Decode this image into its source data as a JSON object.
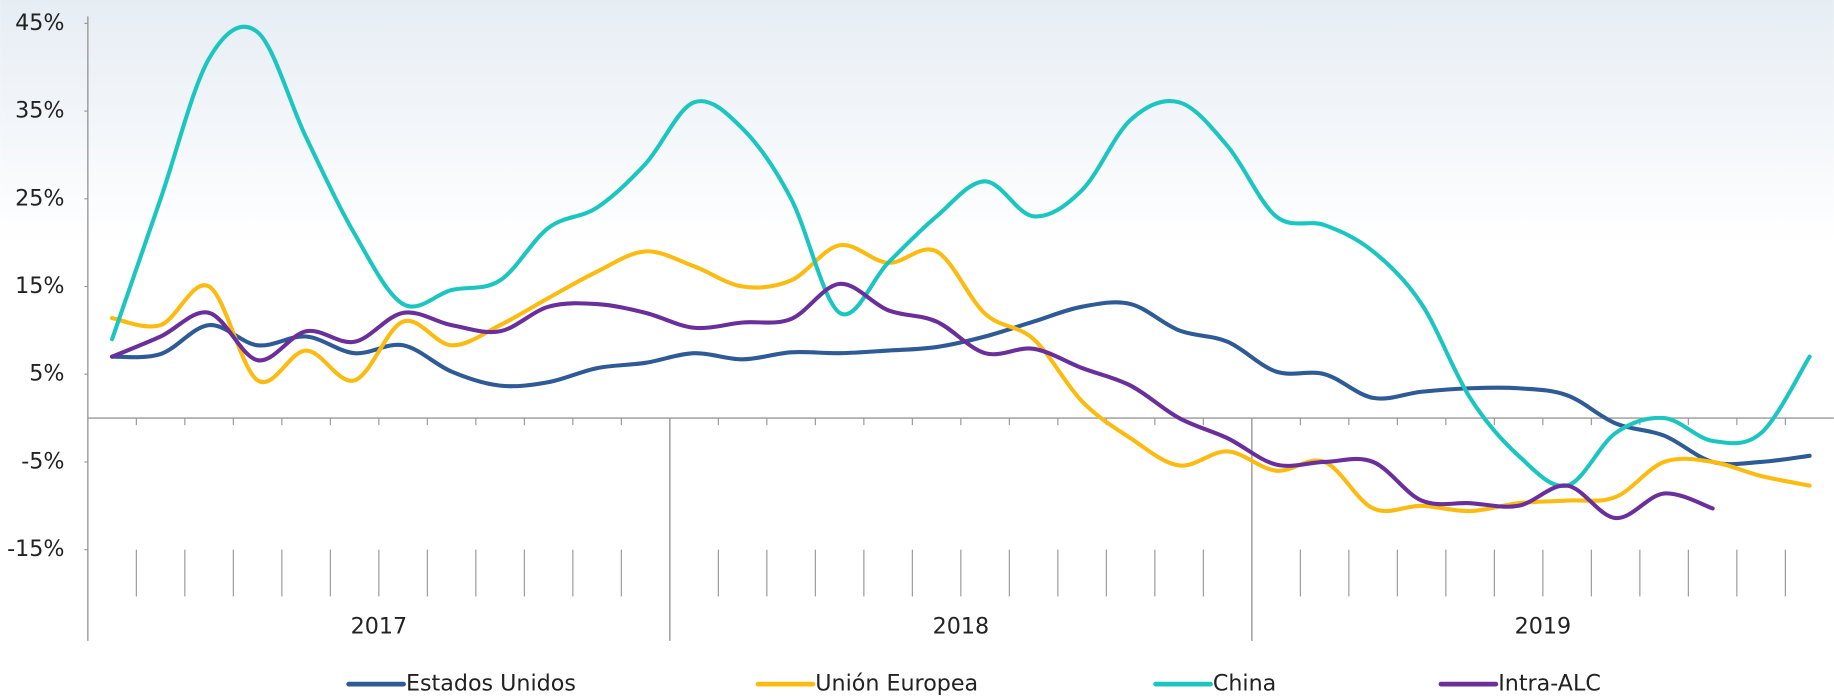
{
  "chart_data": {
    "type": "line",
    "categories": [
      null,
      null,
      null,
      null,
      null,
      null,
      null,
      null,
      null,
      null,
      null,
      null,
      null,
      null,
      null,
      null,
      null,
      null,
      null,
      null,
      null,
      null,
      null,
      null,
      null,
      null,
      null,
      null,
      null,
      null,
      null,
      null,
      null,
      null,
      null,
      null
    ],
    "year_labels": [
      "2017",
      "2018",
      "2019"
    ],
    "ylim": [
      -15,
      45
    ],
    "yticks": [
      {
        "value": 45,
        "label": "45%"
      },
      {
        "value": 35,
        "label": "35%"
      },
      {
        "value": 25,
        "label": "25%"
      },
      {
        "value": 15,
        "label": "15%"
      },
      {
        "value": 5,
        "label": "5%"
      },
      {
        "value": -5,
        "label": "-5%"
      },
      {
        "value": -15,
        "label": "-15%"
      }
    ],
    "legend": "bottom",
    "series": [
      {
        "name": "Estados Unidos",
        "color": "#2e5a96",
        "values": [
          7,
          7.3,
          10.6,
          8.3,
          9.3,
          7.4,
          8.3,
          5.3,
          3.7,
          4.1,
          5.7,
          6.3,
          7.4,
          6.7,
          7.5,
          7.4,
          7.7,
          8.1,
          9.3,
          11,
          12.7,
          13,
          10,
          8.7,
          5.3,
          5,
          2.3,
          3,
          3.4,
          3.4,
          2.6,
          -0.6,
          -2,
          -5,
          -5,
          -4.3
        ]
      },
      {
        "name": "Unión Europea",
        "color": "#fbbb10",
        "values": [
          11.4,
          10.6,
          15,
          4.3,
          7.7,
          4.3,
          11,
          8.3,
          10.6,
          13.7,
          16.7,
          19,
          17.3,
          15,
          15.7,
          19.7,
          17.7,
          19,
          11.9,
          9,
          1.9,
          -2.3,
          -5.4,
          -3.8,
          -6,
          -5,
          -10.3,
          -10,
          -10.6,
          -9.7,
          -9.4,
          -9,
          -5,
          -5,
          -6.6,
          -7.7
        ]
      },
      {
        "name": "China",
        "color": "#1cc6c0",
        "values": [
          9,
          25,
          41,
          44,
          32,
          21,
          13,
          14.6,
          15.7,
          21.7,
          24,
          29,
          36,
          33,
          25,
          12,
          17.7,
          23,
          27,
          23,
          26,
          34,
          36,
          31,
          23,
          22,
          19,
          13,
          2.3,
          -4.3,
          -7.7,
          -1.7,
          0,
          -2.6,
          -1.7,
          7
        ]
      },
      {
        "name": "Intra-ALC",
        "color": "#6a2f9a",
        "values": [
          7,
          9.3,
          12,
          6.6,
          9.9,
          8.7,
          12,
          10.6,
          9.9,
          12.7,
          13,
          12,
          10.3,
          10.9,
          11.3,
          15.3,
          12.3,
          11,
          7.4,
          7.9,
          5.7,
          3.7,
          0,
          -2.3,
          -5.3,
          -5,
          -5,
          -9.4,
          -9.7,
          -10,
          -7.7,
          -11.4,
          -8.6,
          -10.3,
          null,
          null
        ]
      }
    ]
  }
}
